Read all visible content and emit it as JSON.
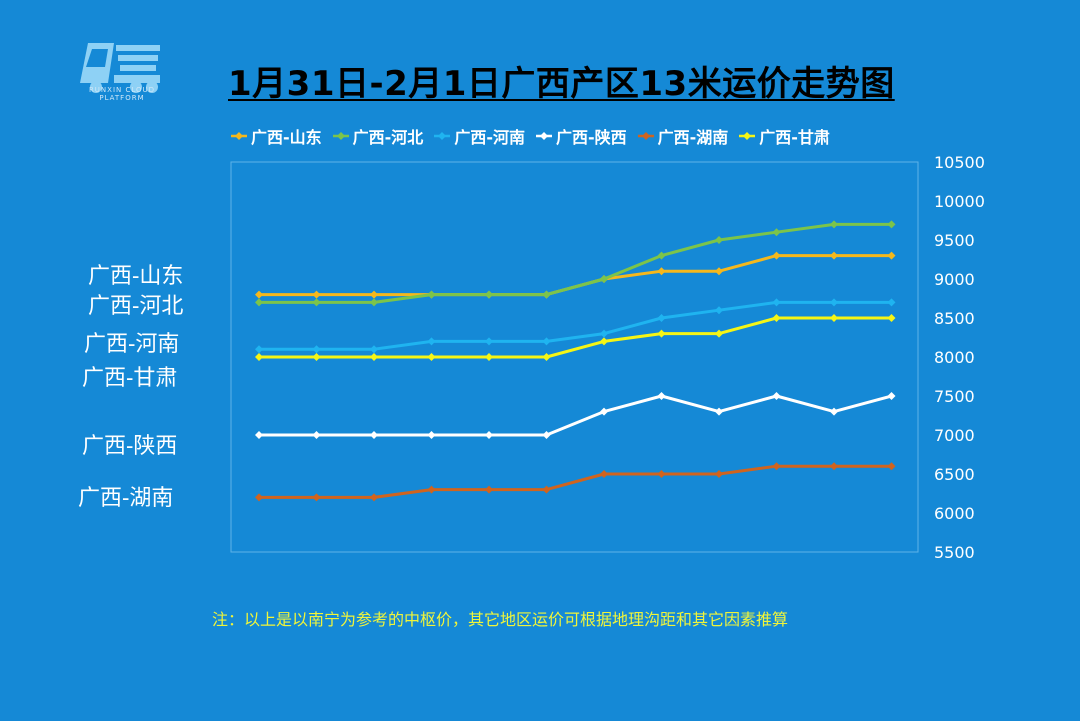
{
  "logo": {
    "caption": "RUNXIN CLOUD PLATFORM"
  },
  "chart_data": {
    "type": "line",
    "title": "1月31日-2月1日广西产区13米运价走势图",
    "xlabel": "",
    "ylabel": "",
    "ylim": [
      5500,
      10500
    ],
    "yticks": [
      5500,
      6000,
      6500,
      7000,
      7500,
      8000,
      8500,
      9000,
      9500,
      10000,
      10500
    ],
    "x": [
      1,
      2,
      3,
      4,
      5,
      6,
      7,
      8,
      9,
      10,
      11,
      12
    ],
    "series": [
      {
        "name": "广西-山东",
        "color": "#f5b81c",
        "values": [
          8800,
          8800,
          8800,
          8800,
          8800,
          8800,
          9000,
          9100,
          9100,
          9300,
          9300,
          9300
        ]
      },
      {
        "name": "广西-河北",
        "color": "#7cc44a",
        "values": [
          8700,
          8700,
          8700,
          8800,
          8800,
          8800,
          9000,
          9300,
          9500,
          9600,
          9700,
          9700
        ]
      },
      {
        "name": "广西-河南",
        "color": "#1fb4f0",
        "values": [
          8100,
          8100,
          8100,
          8200,
          8200,
          8200,
          8300,
          8500,
          8600,
          8700,
          8700,
          8700
        ]
      },
      {
        "name": "广西-陕西",
        "color": "#ffffff",
        "values": [
          7000,
          7000,
          7000,
          7000,
          7000,
          7000,
          7300,
          7500,
          7300,
          7500,
          7300,
          7500
        ]
      },
      {
        "name": "广西-湖南",
        "color": "#d0641e",
        "values": [
          6200,
          6200,
          6200,
          6300,
          6300,
          6300,
          6500,
          6500,
          6500,
          6600,
          6600,
          6600
        ]
      },
      {
        "name": "广西-甘肃",
        "color": "#f5f515",
        "values": [
          8000,
          8000,
          8000,
          8000,
          8000,
          8000,
          8200,
          8300,
          8300,
          8500,
          8500,
          8500
        ]
      }
    ],
    "side_labels": [
      "广西-山东",
      "广西-河北",
      "广西-河南",
      "广西-甘肃",
      "广西-陕西",
      "广西-湖南"
    ]
  },
  "note": "注：以上是以南宁为参考的中枢价，其它地区运价可根据地理沟距和其它因素推算"
}
